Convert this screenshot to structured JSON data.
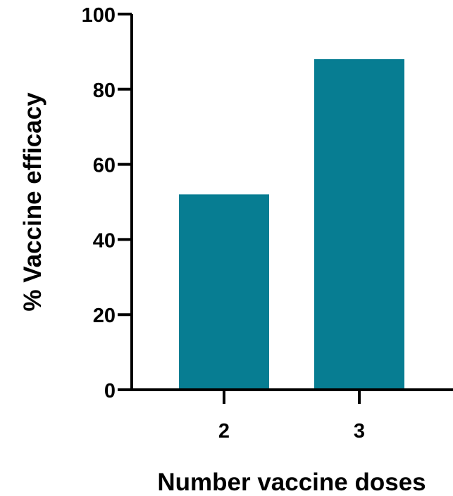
{
  "chart_data": {
    "type": "bar",
    "categories": [
      "2",
      "3"
    ],
    "values": [
      52,
      88
    ],
    "title": "",
    "xlabel": "Number vaccine doses",
    "ylabel": "% Vaccine efficacy",
    "ylim": [
      0,
      100
    ],
    "yticks": [
      "0",
      "20",
      "40",
      "60",
      "80",
      "100"
    ],
    "grid": false,
    "bar_color": "#077d92"
  }
}
